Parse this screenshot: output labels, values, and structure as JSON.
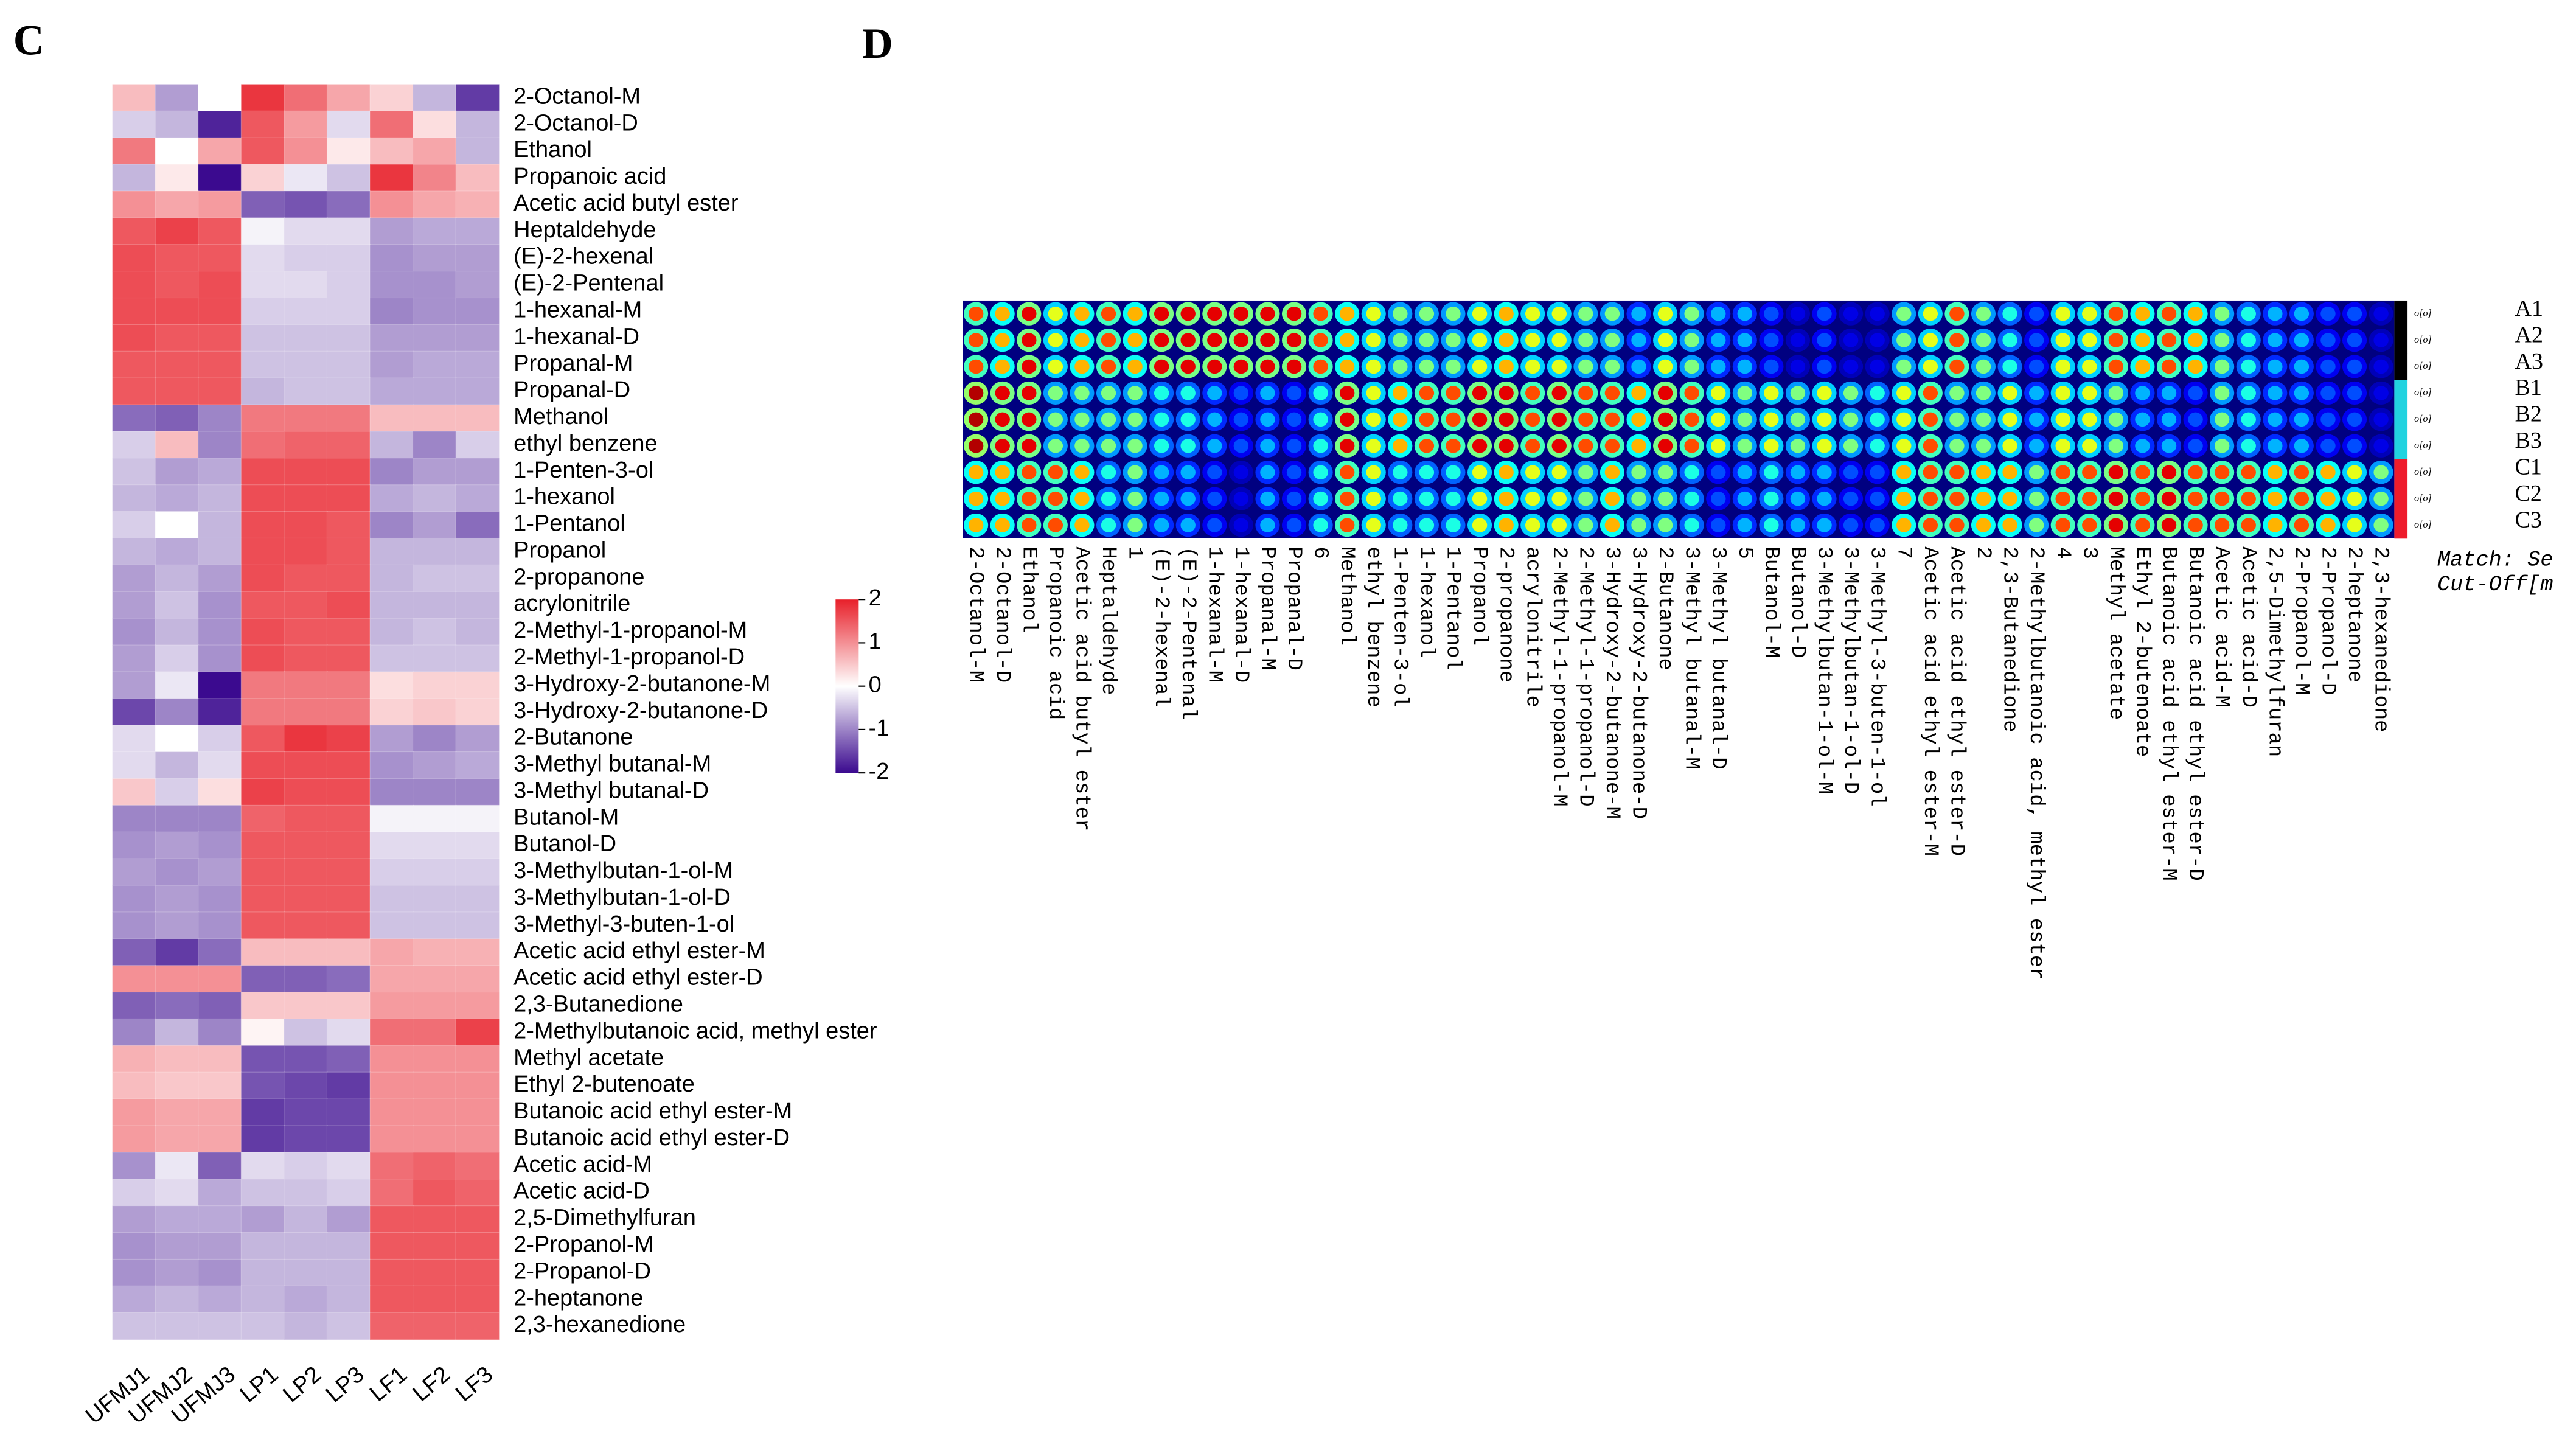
{
  "chart_data": [
    {
      "type": "heatmap",
      "panel_label": "C",
      "rows": [
        "2-Octanol-M",
        "2-Octanol-D",
        "Ethanol",
        "Propanoic acid",
        "Acetic acid butyl ester",
        "Heptaldehyde",
        "(E)-2-hexenal",
        "(E)-2-Pentenal",
        "1-hexanal-M",
        "1-hexanal-D",
        "Propanal-M",
        "Propanal-D",
        "Methanol",
        "ethyl benzene",
        "1-Penten-3-ol",
        "1-hexanol",
        "1-Pentanol",
        "Propanol",
        "2-propanone",
        "acrylonitrile",
        "2-Methyl-1-propanol-M",
        "2-Methyl-1-propanol-D",
        "3-Hydroxy-2-butanone-M",
        "3-Hydroxy-2-butanone-D",
        "2-Butanone",
        "3-Methyl butanal-M",
        "3-Methyl butanal-D",
        "Butanol-M",
        "Butanol-D",
        "3-Methylbutan-1-ol-M",
        "3-Methylbutan-1-ol-D",
        "3-Methyl-3-buten-1-ol",
        "Acetic acid ethyl ester-M",
        "Acetic acid ethyl ester-D",
        "2,3-Butanedione",
        "2-Methylbutanoic acid, methyl ester",
        "Methyl acetate",
        "Ethyl 2-butenoate",
        "Butanoic acid ethyl ester-M",
        "Butanoic acid ethyl ester-D",
        "Acetic acid-M",
        "Acetic acid-D",
        "2,5-Dimethylfuran",
        "2-Propanol-M",
        "2-Propanol-D",
        "2-heptanone",
        "2,3-hexanedione"
      ],
      "columns": [
        "UFMJ1",
        "UFMJ2",
        "UFMJ3",
        "LP1",
        "LP2",
        "LP3",
        "LF1",
        "LF2",
        "LF3"
      ],
      "values": [
        [
          0.6,
          -0.8,
          0,
          1.8,
          1.3,
          0.8,
          0.4,
          -0.6,
          -1.6
        ],
        [
          -0.4,
          -0.6,
          -1.8,
          1.5,
          0.9,
          -0.3,
          1.3,
          0.3,
          -0.6
        ],
        [
          1.2,
          0,
          0.8,
          1.5,
          1.0,
          0.2,
          0.6,
          0.8,
          -0.6
        ],
        [
          -0.6,
          0.2,
          -2,
          0.4,
          -0.2,
          -0.5,
          1.8,
          1.1,
          0.6
        ],
        [
          1.0,
          0.8,
          0.9,
          -1.3,
          -1.4,
          -1.2,
          1.0,
          0.8,
          0.7
        ],
        [
          1.5,
          1.7,
          1.5,
          -0.1,
          -0.3,
          -0.3,
          -0.8,
          -0.7,
          -0.7
        ],
        [
          1.6,
          1.5,
          1.5,
          -0.3,
          -0.4,
          -0.4,
          -0.9,
          -0.8,
          -0.8
        ],
        [
          1.6,
          1.5,
          1.6,
          -0.3,
          -0.3,
          -0.4,
          -0.9,
          -0.9,
          -0.8
        ],
        [
          1.6,
          1.6,
          1.6,
          -0.4,
          -0.4,
          -0.4,
          -1.0,
          -0.9,
          -0.9
        ],
        [
          1.6,
          1.5,
          1.5,
          -0.5,
          -0.5,
          -0.5,
          -0.8,
          -0.8,
          -0.8
        ],
        [
          1.5,
          1.5,
          1.5,
          -0.5,
          -0.5,
          -0.5,
          -0.8,
          -0.7,
          -0.7
        ],
        [
          1.5,
          1.5,
          1.5,
          -0.6,
          -0.5,
          -0.5,
          -0.7,
          -0.7,
          -0.7
        ],
        [
          -1.2,
          -1.3,
          -1.0,
          1.2,
          1.2,
          1.2,
          0.6,
          0.6,
          0.6
        ],
        [
          -0.4,
          0.6,
          -1.0,
          1.3,
          1.4,
          1.4,
          -0.6,
          -1.0,
          -0.4
        ],
        [
          -0.5,
          -0.8,
          -0.7,
          1.6,
          1.6,
          1.6,
          -1.0,
          -0.8,
          -0.8
        ],
        [
          -0.6,
          -0.7,
          -0.6,
          1.6,
          1.6,
          1.6,
          -0.7,
          -0.6,
          -0.7
        ],
        [
          -0.4,
          0,
          -0.6,
          1.6,
          1.6,
          1.5,
          -1.0,
          -0.8,
          -1.2
        ],
        [
          -0.6,
          -0.7,
          -0.6,
          1.6,
          1.6,
          1.5,
          -0.6,
          -0.6,
          -0.6
        ],
        [
          -0.8,
          -0.6,
          -0.8,
          1.6,
          1.5,
          1.5,
          -0.6,
          -0.5,
          -0.5
        ],
        [
          -0.8,
          -0.5,
          -0.9,
          1.5,
          1.5,
          1.6,
          -0.6,
          -0.6,
          -0.6
        ],
        [
          -0.9,
          -0.6,
          -0.9,
          1.6,
          1.5,
          1.5,
          -0.6,
          -0.5,
          -0.6
        ],
        [
          -0.8,
          -0.4,
          -0.9,
          1.6,
          1.5,
          1.5,
          -0.5,
          -0.5,
          -0.5
        ],
        [
          -0.8,
          -0.2,
          -2.0,
          1.2,
          1.2,
          1.2,
          0.3,
          0.4,
          0.4
        ],
        [
          -1.5,
          -1.0,
          -1.8,
          1.2,
          1.2,
          1.2,
          0.4,
          0.5,
          0.4
        ],
        [
          -0.3,
          0,
          -0.4,
          1.5,
          1.8,
          1.7,
          -0.8,
          -1.0,
          -0.8
        ],
        [
          -0.3,
          -0.6,
          -0.3,
          1.6,
          1.6,
          1.6,
          -0.9,
          -0.8,
          -0.7
        ],
        [
          0.5,
          -0.4,
          0.3,
          1.7,
          1.6,
          1.6,
          -1.0,
          -1.0,
          -1.0
        ],
        [
          -1.0,
          -1.0,
          -1.0,
          1.4,
          1.5,
          1.5,
          -0.1,
          -0.1,
          -0.1
        ],
        [
          -0.9,
          -0.8,
          -0.9,
          1.5,
          1.5,
          1.5,
          -0.3,
          -0.3,
          -0.3
        ],
        [
          -0.8,
          -0.9,
          -0.8,
          1.5,
          1.5,
          1.5,
          -0.4,
          -0.4,
          -0.4
        ],
        [
          -0.9,
          -0.8,
          -0.9,
          1.5,
          1.5,
          1.5,
          -0.5,
          -0.5,
          -0.5
        ],
        [
          -0.9,
          -0.8,
          -0.9,
          1.5,
          1.5,
          1.5,
          -0.5,
          -0.5,
          -0.5
        ],
        [
          -1.3,
          -1.6,
          -1.2,
          0.6,
          0.6,
          0.6,
          0.8,
          0.7,
          0.7
        ],
        [
          1.0,
          1.0,
          1.0,
          -1.3,
          -1.3,
          -1.2,
          0.8,
          0.8,
          0.8
        ],
        [
          -1.3,
          -1.2,
          -1.3,
          0.5,
          0.5,
          0.5,
          0.9,
          0.9,
          0.9
        ],
        [
          -1.0,
          -0.6,
          -1.0,
          0.1,
          -0.5,
          -0.3,
          1.3,
          1.3,
          1.7
        ],
        [
          0.7,
          0.6,
          0.6,
          -1.4,
          -1.4,
          -1.3,
          1.0,
          1.0,
          1.0
        ],
        [
          0.6,
          0.5,
          0.5,
          -1.4,
          -1.5,
          -1.6,
          1.0,
          1.0,
          1.0
        ],
        [
          0.9,
          0.8,
          0.8,
          -1.6,
          -1.5,
          -1.5,
          1.0,
          1.0,
          1.0
        ],
        [
          0.9,
          0.8,
          0.8,
          -1.6,
          -1.5,
          -1.5,
          1.0,
          1.0,
          1.0
        ],
        [
          -0.9,
          -0.2,
          -1.3,
          -0.3,
          -0.4,
          -0.3,
          1.3,
          1.4,
          1.3
        ],
        [
          -0.4,
          -0.3,
          -0.7,
          -0.5,
          -0.5,
          -0.4,
          1.3,
          1.5,
          1.4
        ],
        [
          -0.8,
          -0.7,
          -0.7,
          -0.8,
          -0.6,
          -0.8,
          1.5,
          1.5,
          1.5
        ],
        [
          -0.9,
          -0.8,
          -0.8,
          -0.6,
          -0.6,
          -0.6,
          1.5,
          1.5,
          1.5
        ],
        [
          -0.9,
          -0.8,
          -0.9,
          -0.6,
          -0.6,
          -0.6,
          1.5,
          1.5,
          1.5
        ],
        [
          -0.7,
          -0.6,
          -0.7,
          -0.6,
          -0.7,
          -0.6,
          1.5,
          1.5,
          1.5
        ],
        [
          -0.5,
          -0.5,
          -0.5,
          -0.5,
          -0.6,
          -0.5,
          1.4,
          1.4,
          1.4
        ]
      ],
      "clim": [
        -2,
        2
      ],
      "colorbar_ticks": [
        2,
        1,
        0,
        -1,
        -2
      ],
      "colors": {
        "low": "#3b0a8f",
        "mid": "#ffffff",
        "high": "#e8202a"
      }
    },
    {
      "type": "gallery",
      "panel_label": "D",
      "columns": [
        "2-Octanol-M",
        "2-Octanol-D",
        "Ethanol",
        "Propanoic acid",
        "Acetic acid butyl ester",
        "Heptaldehyde",
        "1",
        "(E)-2-hexenal",
        "(E)-2-Pentenal",
        "1-hexanal-M",
        "1-hexanal-D",
        "Propanal-M",
        "Propanal-D",
        "6",
        "Methanol",
        "ethyl benzene",
        "1-Penten-3-ol",
        "1-hexanol",
        "1-Pentanol",
        "Propanol",
        "2-propanone",
        "acrylonitrile",
        "2-Methyl-1-propanol-M",
        "2-Methyl-1-propanol-D",
        "3-Hydroxy-2-butanone-M",
        "3-Hydroxy-2-butanone-D",
        "2-Butanone",
        "3-Methyl butanal-M",
        "3-Methyl butanal-D",
        "5",
        "Butanol-M",
        "Butanol-D",
        "3-Methylbutan-1-ol-M",
        "3-Methylbutan-1-ol-D",
        "3-Methyl-3-buten-1-ol",
        "7",
        "Acetic acid ethyl ester-M",
        "Acetic acid ethyl ester-D",
        "2",
        "2,3-Butanedione",
        "2-Methylbutanoic acid, methyl ester",
        "4",
        "3",
        "Methyl acetate",
        "Ethyl 2-butenoate",
        "Butanoic acid ethyl ester-M",
        "Butanoic acid ethyl ester-D",
        "Acetic acid-M",
        "Acetic acid-D",
        "2,5-Dimethylfuran",
        "2-Propanol-M",
        "2-Propanol-D",
        "2-heptanone",
        "2,3-hexanedione"
      ],
      "rows": [
        "A1",
        "A2",
        "A3",
        "B1",
        "B2",
        "B3",
        "C1",
        "C2",
        "C3"
      ],
      "row_group": [
        0,
        0,
        0,
        1,
        1,
        1,
        2,
        2,
        2
      ],
      "group_colors": [
        "#000000",
        "#22d3e0",
        "#ee1c2c"
      ],
      "row_tags": [
        "o[o]",
        "o[o]",
        "o[o]",
        "o[o]",
        "o[o]",
        "o[o]",
        "o[o]",
        "o[o]",
        "o[o]"
      ],
      "intensity": [
        [
          0.8,
          0.95,
          0.7
        ],
        [
          0.7,
          0.9,
          0.7
        ],
        [
          0.9,
          0.9,
          0.8
        ],
        [
          0.6,
          0.5,
          0.8
        ],
        [
          0.7,
          0.5,
          0.7
        ],
        [
          0.8,
          0.5,
          0.4
        ],
        [
          0.7,
          0.5,
          0.5
        ],
        [
          0.9,
          0.4,
          0.3
        ],
        [
          0.9,
          0.4,
          0.3
        ],
        [
          0.9,
          0.3,
          0.2
        ],
        [
          0.9,
          0.2,
          0.1
        ],
        [
          0.9,
          0.3,
          0.3
        ],
        [
          0.9,
          0.2,
          0.2
        ],
        [
          0.8,
          0.4,
          0.4
        ],
        [
          0.7,
          0.9,
          0.8
        ],
        [
          0.6,
          0.6,
          0.6
        ],
        [
          0.5,
          0.7,
          0.4
        ],
        [
          0.5,
          0.8,
          0.4
        ],
        [
          0.5,
          0.8,
          0.4
        ],
        [
          0.6,
          0.9,
          0.6
        ],
        [
          0.7,
          0.9,
          0.7
        ],
        [
          0.6,
          0.8,
          0.6
        ],
        [
          0.6,
          0.9,
          0.6
        ],
        [
          0.5,
          0.8,
          0.5
        ],
        [
          0.5,
          0.8,
          0.7
        ],
        [
          0.3,
          0.7,
          0.5
        ],
        [
          0.6,
          0.9,
          0.5
        ],
        [
          0.5,
          0.8,
          0.4
        ],
        [
          0.3,
          0.6,
          0.2
        ],
        [
          0.3,
          0.5,
          0.3
        ],
        [
          0.2,
          0.6,
          0.4
        ],
        [
          0.1,
          0.5,
          0.3
        ],
        [
          0.2,
          0.6,
          0.3
        ],
        [
          0.1,
          0.5,
          0.2
        ],
        [
          0.1,
          0.4,
          0.2
        ],
        [
          0.5,
          0.6,
          0.7
        ],
        [
          0.6,
          0.8,
          0.8
        ],
        [
          0.8,
          0.5,
          0.8
        ],
        [
          0.5,
          0.5,
          0.7
        ],
        [
          0.4,
          0.6,
          0.7
        ],
        [
          0.2,
          0.3,
          0.5
        ],
        [
          0.6,
          0.6,
          0.8
        ],
        [
          0.6,
          0.6,
          0.8
        ],
        [
          0.8,
          0.5,
          0.9
        ],
        [
          0.7,
          0.3,
          0.8
        ],
        [
          0.8,
          0.3,
          0.9
        ],
        [
          0.7,
          0.2,
          0.8
        ],
        [
          0.5,
          0.5,
          0.8
        ],
        [
          0.4,
          0.4,
          0.8
        ],
        [
          0.3,
          0.3,
          0.7
        ],
        [
          0.3,
          0.3,
          0.8
        ],
        [
          0.2,
          0.2,
          0.7
        ],
        [
          0.2,
          0.2,
          0.6
        ],
        [
          0.1,
          0.1,
          0.5
        ]
      ],
      "clim": [
        0,
        1
      ],
      "notes": [
        "Match: Se",
        "Cut-Off[m"
      ]
    }
  ]
}
